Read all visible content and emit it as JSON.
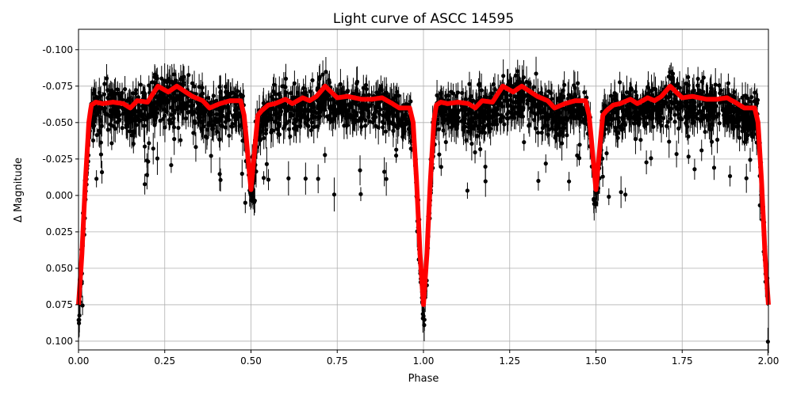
{
  "chart_data": {
    "type": "scatter",
    "title": "Light curve of ASCC 14595",
    "xlabel": "Phase",
    "ylabel": "Δ Magnitude",
    "xlim": [
      0.0,
      2.0
    ],
    "ylim": [
      0.106,
      -0.114
    ],
    "y_inverted": true,
    "grid": true,
    "legend": "none",
    "xticks": [
      "0.00",
      "0.25",
      "0.50",
      "0.75",
      "1.00",
      "1.25",
      "1.50",
      "1.75",
      "2.00"
    ],
    "yticks": [
      "-0.100",
      "-0.075",
      "-0.050",
      "-0.025",
      "0.000",
      "0.025",
      "0.050",
      "0.075",
      "0.100"
    ],
    "colors": {
      "observations": "#000000",
      "model": "#ff0000",
      "grid": "#b0b0b0"
    },
    "observations": {
      "marker": "filled-circle",
      "error_bars": true,
      "typical_scatter": 0.015,
      "folded_period_repeats": 2
    },
    "model": {
      "phase": [
        0.0,
        0.01,
        0.02,
        0.03,
        0.037,
        0.05,
        0.07,
        0.1,
        0.13,
        0.15,
        0.17,
        0.2,
        0.23,
        0.26,
        0.285,
        0.33,
        0.36,
        0.38,
        0.41,
        0.44,
        0.47,
        0.48,
        0.49,
        0.5,
        0.51,
        0.52,
        0.53,
        0.55,
        0.57,
        0.6,
        0.62,
        0.65,
        0.67,
        0.69,
        0.715,
        0.75,
        0.78,
        0.82,
        0.85,
        0.88,
        0.91,
        0.93,
        0.96,
        0.97,
        0.98,
        0.99,
        1.0
      ],
      "magnitude": [
        0.075,
        0.04,
        -0.01,
        -0.05,
        -0.062,
        -0.064,
        -0.063,
        -0.064,
        -0.063,
        -0.06,
        -0.065,
        -0.064,
        -0.075,
        -0.071,
        -0.075,
        -0.068,
        -0.065,
        -0.06,
        -0.063,
        -0.065,
        -0.065,
        -0.055,
        -0.03,
        -0.004,
        -0.03,
        -0.055,
        -0.058,
        -0.062,
        -0.063,
        -0.066,
        -0.063,
        -0.067,
        -0.065,
        -0.068,
        -0.075,
        -0.067,
        -0.068,
        -0.066,
        -0.066,
        -0.067,
        -0.063,
        -0.06,
        -0.06,
        -0.05,
        -0.01,
        0.04,
        0.075
      ]
    }
  }
}
